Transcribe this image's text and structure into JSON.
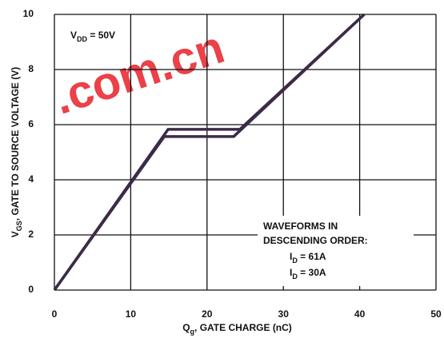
{
  "chart_data": {
    "type": "line",
    "x_label": {
      "main": "Q",
      "sub": "g",
      "rest": ", GATE CHARGE (nC)"
    },
    "y_label": {
      "main": "V",
      "sub": "GS",
      "rest": ", GATE TO SOURCE VOLTAGE (V)"
    },
    "annotation_vdd": {
      "main": "V",
      "sub": "DD",
      "rest": " = 50V"
    },
    "legend_title": [
      "WAVEFORMS IN",
      "DESCENDING ORDER:"
    ],
    "legend_items": [
      {
        "main": "I",
        "sub": "D",
        "rest": " = 61A"
      },
      {
        "main": "I",
        "sub": "D",
        "rest": " = 30A"
      }
    ],
    "watermark": ".com.cn",
    "series": [
      {
        "color": "#3b2b47",
        "x": [
          0,
          14.9,
          24.3,
          40.6
        ],
        "values": [
          0,
          5.83,
          5.83,
          10
        ]
      },
      {
        "color": "#3b2b47",
        "x": [
          0,
          14.4,
          23.5,
          40.6
        ],
        "values": [
          0,
          5.57,
          5.57,
          10
        ]
      }
    ],
    "xlim": [
      0,
      50
    ],
    "xticks": [
      0,
      10,
      20,
      30,
      40,
      50
    ],
    "ylim": [
      0,
      10
    ],
    "yticks": [
      0,
      2,
      4,
      6,
      8,
      10
    ],
    "grid": true
  }
}
